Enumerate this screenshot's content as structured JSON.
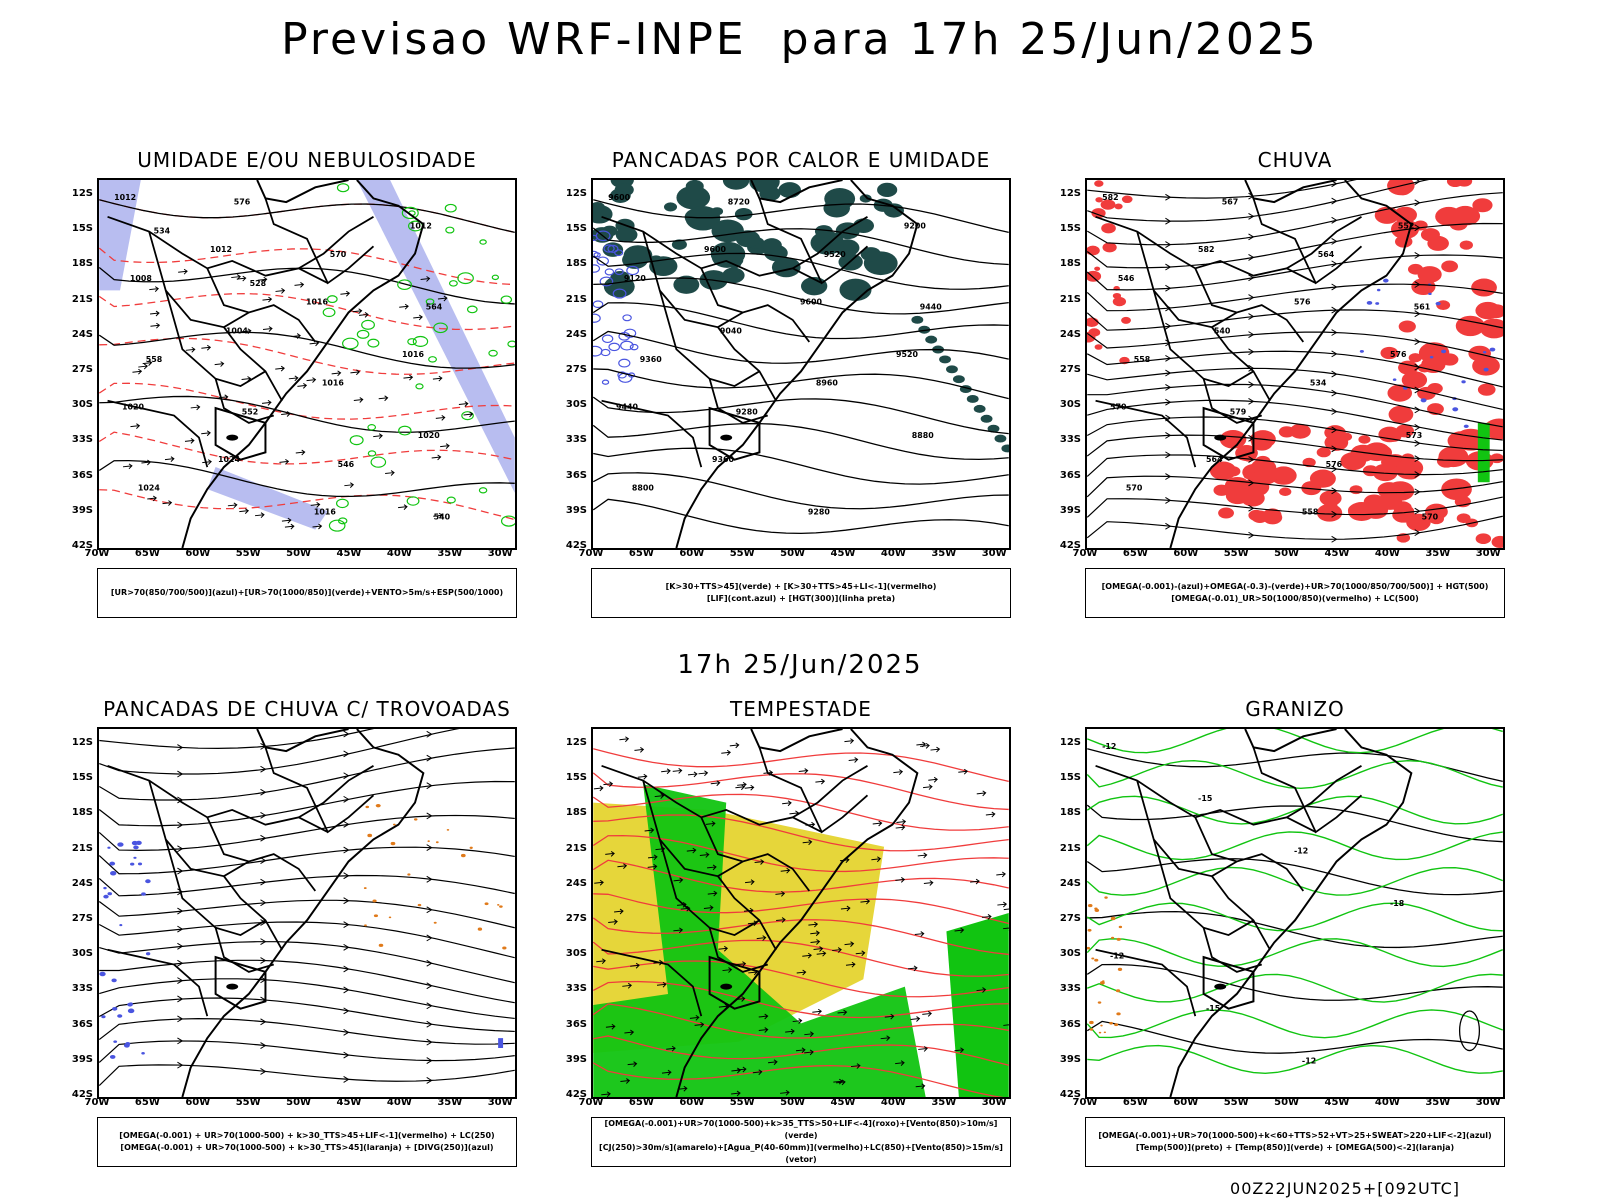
{
  "title": "Previsao WRF-INPE  para 17h 25/Jun/2025",
  "mid_title": "17h 25/Jun/2025",
  "footer": "00Z22JUN2025+[092UTC]",
  "axes": {
    "lat": [
      "12S",
      "15S",
      "18S",
      "21S",
      "24S",
      "27S",
      "30S",
      "33S",
      "36S",
      "39S",
      "42S"
    ],
    "lon": [
      "70W",
      "65W",
      "60W",
      "55W",
      "50W",
      "45W",
      "40W",
      "35W",
      "30W"
    ]
  },
  "colors": {
    "blue": "#4a55e0",
    "lavender": "#b8bdf0",
    "green": "#11c411",
    "red": "#f03c3c",
    "dark_teal": "#1f4a48",
    "yellow": "#e6d63a",
    "orange": "#e07a1a"
  },
  "panels": [
    {
      "title": "UMIDADE E/OU NEBULOSIDADE",
      "legend": [
        "[UR>70(850/700/500)](azul)+[UR>70(1000/850)](verde)+VENTO>5m/s+ESP(500/1000)"
      ],
      "labels": [
        "1012",
        "1012",
        "1016",
        "1016",
        "1020",
        "1024",
        "1016",
        "1012",
        "1008",
        "1004",
        "1016",
        "1020",
        "1024",
        "576",
        "570",
        "564",
        "558",
        "552",
        "546",
        "540",
        "534",
        "528"
      ]
    },
    {
      "title": "PANCADAS POR CALOR E UMIDADE",
      "legend": [
        "[K>30+TTS>45](verde) + [K>30+TTS>45+LI<-1](vermelho)",
        "[LIF](cont.azul) + [HGT(300)](linha preta)"
      ],
      "labels": [
        "9600",
        "9600",
        "9600",
        "9520",
        "9440",
        "9360",
        "9280",
        "9200",
        "9120",
        "9040",
        "8960",
        "8880",
        "8800",
        "8720",
        "9520",
        "9440",
        "9360",
        "9280"
      ]
    },
    {
      "title": "CHUVA",
      "legend": [
        "[OMEGA(-0.001)-(azul)+OMEGA(-0.3)-(verde)+UR>70(1000/850/700/500)] + HGT(500)",
        "[OMEGA(-0.01)_UR>50(1000/850)(vermelho) + LC(500)"
      ],
      "labels": [
        "582",
        "582",
        "576",
        "576",
        "570",
        "564",
        "558",
        "552",
        "546",
        "540",
        "534",
        "573",
        "570",
        "567",
        "564",
        "561",
        "558",
        "579",
        "576",
        "570"
      ]
    },
    {
      "title": "PANCADAS DE CHUVA C/ TROVOADAS",
      "legend": [
        "[OMEGA(-0.001) + UR>70(1000-500) + k>30_TTS>45+LIF<-1](vermelho) + LC(250)",
        "[OMEGA(-0.001) + UR>70(1000-500) + k>30_TTS>45](laranja) + [DIVG(250)](azul)"
      ],
      "labels": []
    },
    {
      "title": "TEMPESTADE",
      "legend": [
        "[OMEGA(-0.001)+UR>70(1000-500)+k>35_TTS>50+LIF<-4](roxo)+[Vento(850)>10m/s](verde)",
        "[CJ(250)>30m/s](amarelo)+[Agua_P(40-60mm)](vermelho)+LC(850)+[Vento(850)>15m/s](vetor)"
      ],
      "labels": []
    },
    {
      "title": "GRANIZO",
      "legend": [
        "[OMEGA(-0.001)+UR>70(1000-500)+k<60+TTS>52+VT>25+SWEAT>220+LIF<-2](azul)",
        "[Temp(500)](preto) + [Temp(850)](verde) + [OMEGA(500)<-2](laranja)"
      ],
      "labels": [
        "-12",
        "-15",
        "-12",
        "-18",
        "-12",
        "-15",
        "-12"
      ]
    }
  ]
}
